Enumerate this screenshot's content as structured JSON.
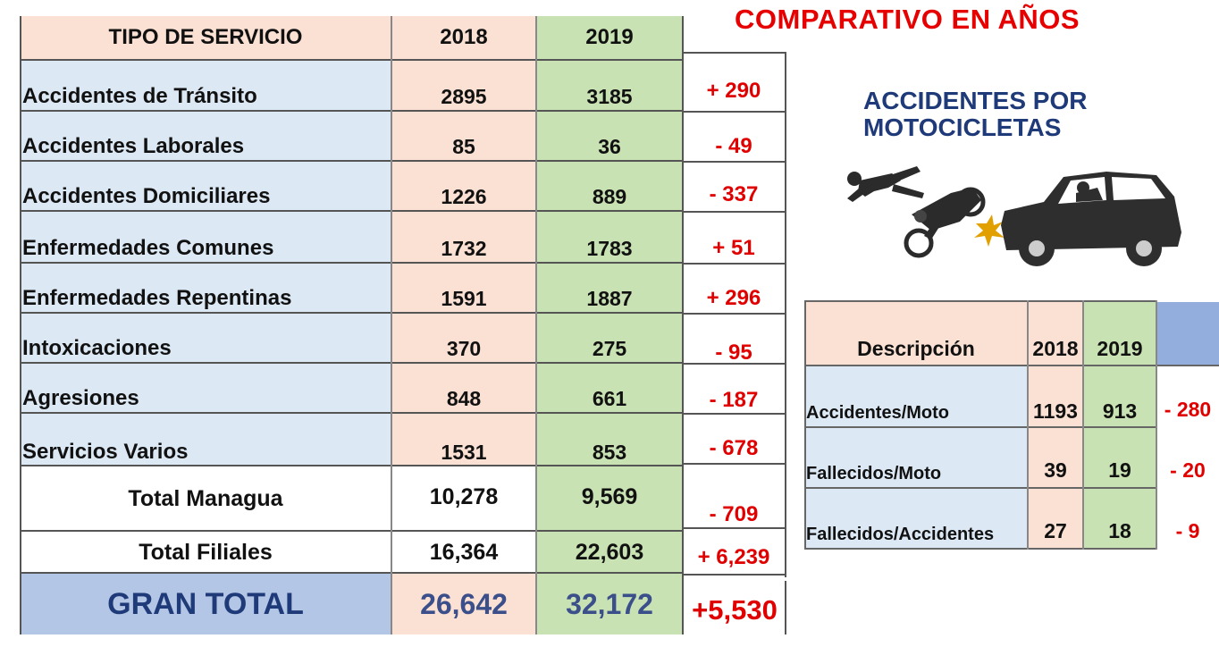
{
  "main_table": {
    "headers": {
      "service": "TIPO DE SERVICIO",
      "y2018": "2018",
      "y2019": "2019"
    },
    "rows": [
      {
        "name": "Accidentes de Tránsito",
        "y2018": "2895",
        "y2019": "3185",
        "diff": "+ 290"
      },
      {
        "name": "Accidentes Laborales",
        "y2018": "85",
        "y2019": "36",
        "diff": "- 49"
      },
      {
        "name": "Accidentes Domiciliares",
        "y2018": "1226",
        "y2019": "889",
        "diff": "- 337"
      },
      {
        "name": "Enfermedades Comunes",
        "y2018": "1732",
        "y2019": "1783",
        "diff": "+ 51"
      },
      {
        "name": "Enfermedades Repentinas",
        "y2018": "1591",
        "y2019": "1887",
        "diff": "+ 296"
      },
      {
        "name": "Intoxicaciones",
        "y2018": "370",
        "y2019": "275",
        "diff": "- 95"
      },
      {
        "name": "Agresiones",
        "y2018": "848",
        "y2019": "661",
        "diff": "- 187"
      },
      {
        "name": "Servicios Varios",
        "y2018": "1531",
        "y2019": "853",
        "diff": "- 678"
      }
    ],
    "total_managua": {
      "name": "Total Managua",
      "y2018": "10,278",
      "y2019": "9,569",
      "diff": "- 709"
    },
    "total_filiales": {
      "name": "Total Filiales",
      "y2018": "16,364",
      "y2019": "22,603",
      "diff": "+ 6,239"
    },
    "gran_total": {
      "name": "GRAN TOTAL",
      "y2018": "26,642",
      "y2019": "32,172",
      "diff": "+5,530"
    }
  },
  "title": "COMPARATIVO EN AÑOS",
  "subtitle": "ACCIDENTES POR MOTOCICLETAS",
  "illustration": {
    "icon": "motorcycle-car-crash-icon"
  },
  "moto_table": {
    "headers": {
      "description": "Descripción",
      "y2018": "2018",
      "y2019": "2019"
    },
    "rows": [
      {
        "name": "Accidentes/Moto",
        "y2018": "1193",
        "y2019": "913",
        "diff": "- 280"
      },
      {
        "name": "Fallecidos/Moto",
        "y2018": "39",
        "y2019": "19",
        "diff": "- 20"
      },
      {
        "name": "Fallecidos/Accidentes",
        "y2018": "27",
        "y2019": "18",
        "diff": "- 9"
      }
    ]
  },
  "colors": {
    "row_blue": "#dce9f5",
    "col_2018": "#fbe1d4",
    "col_2019": "#c8e2b4",
    "gran_total_bg": "#b3c6e6",
    "diff_red": "#e00000",
    "title_red": "#e60000",
    "subtitle_blue": "#1f3a78"
  }
}
